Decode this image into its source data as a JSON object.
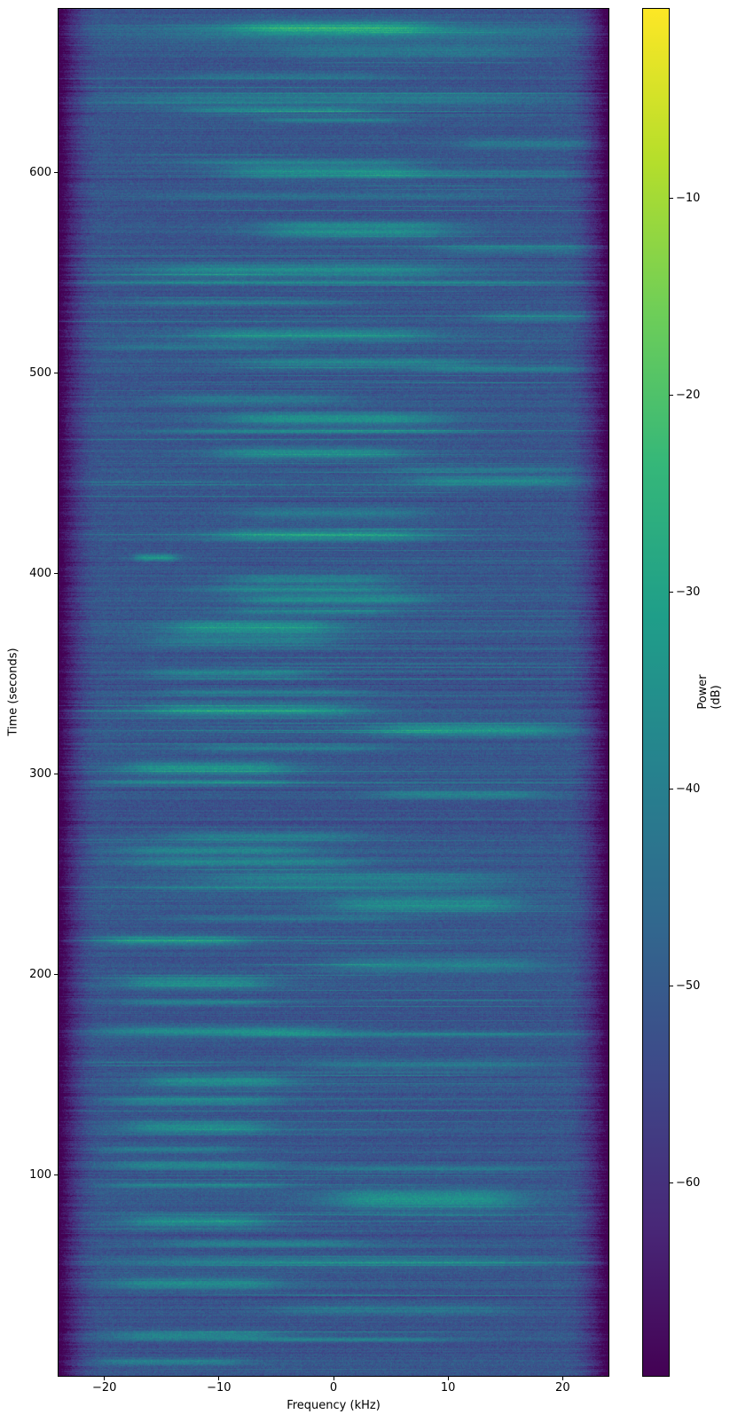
{
  "chart_data": {
    "type": "heatmap",
    "subtype": "spectrogram",
    "description": "Power spectrogram waterfall: time (0-681 s) vertical with 0 at bottom, two-sided frequency axis (-24 to 24 kHz) horizontal. Blue noise background around -51 dB with many bright teal horizontal bands around -35 to -30 dB, and dark purple roll-off beyond +/-21 kHz at the left and right edges. Rendered with the viridis colormap.",
    "xlabel": "Frequency (kHz)",
    "ylabel": "Time (seconds)",
    "colorbar_label": "Power (dB)",
    "xlim": [
      -24,
      24
    ],
    "ylim": [
      0,
      681.5
    ],
    "x_ticks": [
      {
        "v": -20,
        "label": "−20"
      },
      {
        "v": -10,
        "label": "−10"
      },
      {
        "v": 0,
        "label": "0"
      },
      {
        "v": 10,
        "label": "10"
      },
      {
        "v": 20,
        "label": "20"
      }
    ],
    "y_ticks": [
      {
        "v": 100,
        "label": "100"
      },
      {
        "v": 200,
        "label": "200"
      },
      {
        "v": 300,
        "label": "300"
      },
      {
        "v": 400,
        "label": "400"
      },
      {
        "v": 500,
        "label": "500"
      },
      {
        "v": 600,
        "label": "600"
      }
    ],
    "colorbar_ticks": [
      {
        "v": -10,
        "label": "−10"
      },
      {
        "v": -20,
        "label": "−20"
      },
      {
        "v": -30,
        "label": "−30"
      },
      {
        "v": -40,
        "label": "−40"
      },
      {
        "v": -50,
        "label": "−50"
      },
      {
        "v": -60,
        "label": "−60"
      }
    ],
    "value_range_db": [
      -69.8,
      -0.4
    ],
    "colormap": "viridis",
    "viridis_stops": [
      "#440154",
      "#482878",
      "#3e4989",
      "#31688e",
      "#26828e",
      "#1f9e89",
      "#35b779",
      "#6ece58",
      "#b5de2b",
      "#fde725"
    ],
    "background_db": -51.5,
    "noise_sigma_db": 3.4,
    "edge_rolloff": {
      "start_khz": 20.5,
      "end_khz": 24,
      "atten_db": 22
    },
    "thin_row_rate": 0.1,
    "dropout_row_rate": 0.03,
    "seed": 123456789,
    "bands_format": "[time_center_s, time_halfwidth_s, freq_center_khz, freq_halfwidth_khz, boost_db]",
    "bands": [
      [
        672,
        2.5,
        0,
        8,
        15
      ],
      [
        669,
        4,
        2,
        18,
        6
      ],
      [
        660,
        2.5,
        6,
        11,
        8
      ],
      [
        648,
        1.5,
        -4,
        9,
        7
      ],
      [
        637,
        2.5,
        0,
        18,
        9
      ],
      [
        631,
        1.2,
        -5,
        8,
        12
      ],
      [
        626,
        0.8,
        0,
        6,
        12
      ],
      [
        614,
        1.8,
        17,
        6,
        9
      ],
      [
        605,
        1.2,
        -3,
        10,
        9
      ],
      [
        600,
        2.5,
        -1,
        8,
        14
      ],
      [
        599,
        1.5,
        13,
        9,
        8
      ],
      [
        588,
        1.2,
        0,
        15,
        7
      ],
      [
        574,
        1.2,
        2,
        8,
        11
      ],
      [
        570,
        2,
        2,
        8,
        14
      ],
      [
        562,
        1.8,
        16,
        7,
        9
      ],
      [
        551,
        2.5,
        -3,
        13,
        13
      ],
      [
        545,
        0.8,
        0,
        21,
        12
      ],
      [
        535,
        1.2,
        -8,
        9,
        8
      ],
      [
        528,
        1.8,
        18,
        5,
        9
      ],
      [
        519,
        2.2,
        -2,
        10,
        13
      ],
      [
        513,
        1.2,
        -12,
        8,
        8
      ],
      [
        505,
        1.8,
        2,
        10,
        11
      ],
      [
        502,
        1.2,
        15,
        7,
        9
      ],
      [
        487,
        1.8,
        -7,
        8,
        9
      ],
      [
        477,
        2.2,
        0,
        9,
        15
      ],
      [
        471,
        0.8,
        -2,
        13,
        12
      ],
      [
        460,
        2.2,
        -2,
        8,
        14
      ],
      [
        452,
        1.2,
        13,
        8,
        8
      ],
      [
        446,
        1.8,
        14,
        7,
        12
      ],
      [
        430,
        2.2,
        0,
        8,
        9
      ],
      [
        419,
        2.2,
        -1,
        9,
        15
      ],
      [
        408,
        1.2,
        -15.5,
        1.8,
        17
      ],
      [
        397,
        1.8,
        -2,
        7,
        12
      ],
      [
        392,
        1.2,
        -3,
        8,
        12
      ],
      [
        387,
        1.8,
        0,
        8,
        14
      ],
      [
        381,
        1.2,
        -2,
        7,
        10
      ],
      [
        373,
        2.8,
        -7,
        7,
        15
      ],
      [
        366,
        1.8,
        -8,
        8,
        11
      ],
      [
        350,
        1.8,
        -9,
        7,
        12
      ],
      [
        341,
        1.2,
        -6,
        9,
        10
      ],
      [
        332,
        2.2,
        -7,
        9,
        16
      ],
      [
        322,
        2.2,
        12,
        8,
        15
      ],
      [
        313,
        1.2,
        -4,
        8,
        9
      ],
      [
        303,
        2.2,
        -11,
        7,
        16
      ],
      [
        296,
        1.2,
        -12,
        8,
        11
      ],
      [
        290,
        1.8,
        11,
        7,
        11
      ],
      [
        269,
        1.8,
        -6,
        8,
        10
      ],
      [
        262,
        1.8,
        -10,
        8,
        11
      ],
      [
        256,
        1.8,
        -8,
        10,
        12
      ],
      [
        248,
        2.2,
        2,
        13,
        11
      ],
      [
        243,
        1.2,
        -2,
        15,
        9
      ],
      [
        235,
        2.8,
        8,
        8,
        14
      ],
      [
        228,
        1.2,
        -4,
        10,
        8
      ],
      [
        217,
        1.8,
        -14,
        6,
        14
      ],
      [
        205,
        2.8,
        9,
        9,
        11
      ],
      [
        196,
        2.2,
        -12,
        6,
        14
      ],
      [
        186,
        1.2,
        -12,
        6,
        10
      ],
      [
        172,
        1.8,
        -10,
        10,
        13
      ],
      [
        170,
        0.8,
        5,
        14,
        9
      ],
      [
        155,
        1.8,
        8,
        10,
        8
      ],
      [
        147,
        2.2,
        -10,
        6,
        14
      ],
      [
        137,
        1.8,
        -12,
        7,
        12
      ],
      [
        124,
        2.2,
        -12,
        6,
        14
      ],
      [
        113,
        1.2,
        -14,
        6,
        10
      ],
      [
        105,
        1.8,
        -12,
        7,
        12
      ],
      [
        103,
        1.2,
        8,
        10,
        9
      ],
      [
        95,
        1.2,
        -12,
        8,
        11
      ],
      [
        88,
        3.5,
        8,
        8,
        16
      ],
      [
        77,
        2.2,
        -12,
        6,
        14
      ],
      [
        66,
        1.2,
        -6,
        8,
        10
      ],
      [
        57,
        1.8,
        0,
        18,
        10
      ],
      [
        46,
        2.2,
        -12,
        7,
        13
      ],
      [
        33,
        1.8,
        5,
        10,
        9
      ],
      [
        20,
        1.8,
        -12,
        7,
        12
      ],
      [
        18,
        0.8,
        2,
        8,
        10
      ],
      [
        7,
        1.2,
        -14,
        6,
        11
      ]
    ]
  }
}
